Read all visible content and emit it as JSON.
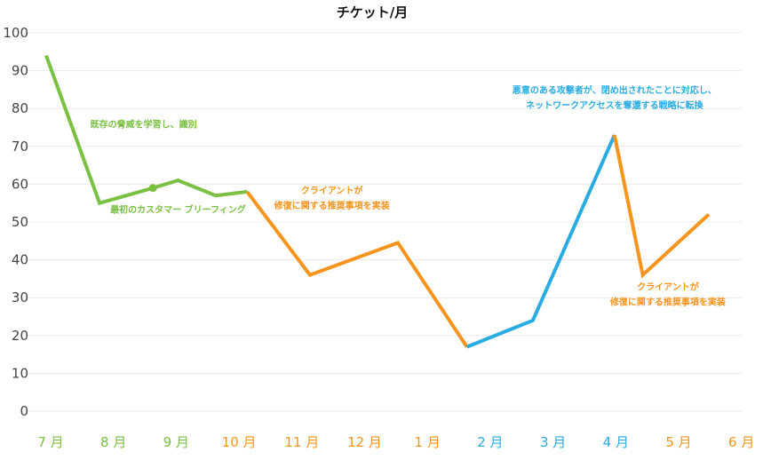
{
  "chart_data": {
    "type": "line",
    "title": "チケット/月",
    "xlabel": "",
    "ylabel": "",
    "ylim": [
      0,
      100
    ],
    "yticks": [
      0,
      10,
      20,
      30,
      40,
      50,
      60,
      70,
      80,
      90,
      100
    ],
    "grid": true,
    "categories": [
      "7 月",
      "8 月",
      "9 月",
      "10 月",
      "11 月",
      "12 月",
      "1 月",
      "2 月",
      "3 月",
      "4 月",
      "5 月",
      "6 月"
    ],
    "category_colors": [
      "#7ac143",
      "#7ac143",
      "#7ac143",
      "#f7941d",
      "#f7941d",
      "#f7941d",
      "#f7941d",
      "#29abe2",
      "#29abe2",
      "#29abe2",
      "#f7941d",
      "#f7941d"
    ],
    "points": [
      {
        "x": 0.0,
        "y": 94
      },
      {
        "x": 0.85,
        "y": 55
      },
      {
        "x": 1.7,
        "y": 59
      },
      {
        "x": 2.1,
        "y": 61
      },
      {
        "x": 2.7,
        "y": 57
      },
      {
        "x": 3.2,
        "y": 58
      },
      {
        "x": 4.2,
        "y": 36
      },
      {
        "x": 5.6,
        "y": 44.5
      },
      {
        "x": 6.7,
        "y": 17
      },
      {
        "x": 7.75,
        "y": 24
      },
      {
        "x": 9.05,
        "y": 73
      },
      {
        "x": 9.5,
        "y": 36
      },
      {
        "x": 10.55,
        "y": 52
      }
    ],
    "series": [
      {
        "name": "phase-1",
        "color": "#7ac143",
        "from": 0,
        "to": 5
      },
      {
        "name": "phase-2",
        "color": "#f7941d",
        "from": 5,
        "to": 8
      },
      {
        "name": "phase-3",
        "color": "#29abe2",
        "from": 8,
        "to": 10
      },
      {
        "name": "phase-4",
        "color": "#f7941d",
        "from": 10,
        "to": 12
      }
    ],
    "markers": [
      {
        "x": 1.7,
        "y": 59,
        "color": "#7ac143"
      }
    ],
    "annotations": [
      {
        "lines": [
          "既存の脅威を学習し、識別"
        ],
        "x": 1.55,
        "y": 75,
        "color": "#7ac143"
      },
      {
        "lines": [
          "最初のカスタマー ブリーフィング"
        ],
        "x": 2.1,
        "y": 52.5,
        "color": "#7ac143"
      },
      {
        "lines": [
          "クライアントが",
          "修復に関する推奨事項を実装"
        ],
        "x": 4.55,
        "y": 57.5,
        "color": "#f7941d"
      },
      {
        "lines": [
          "悪意のある攻撃者が、閉め出されたことに対応し、",
          "ネットワークアクセスを奪還する戦略に転換"
        ],
        "x": 9.05,
        "y": 84,
        "color": "#29abe2"
      },
      {
        "lines": [
          "クライアントが",
          "修復に関する推奨事項を実装"
        ],
        "x": 9.9,
        "y": 32,
        "color": "#f7941d"
      }
    ]
  }
}
